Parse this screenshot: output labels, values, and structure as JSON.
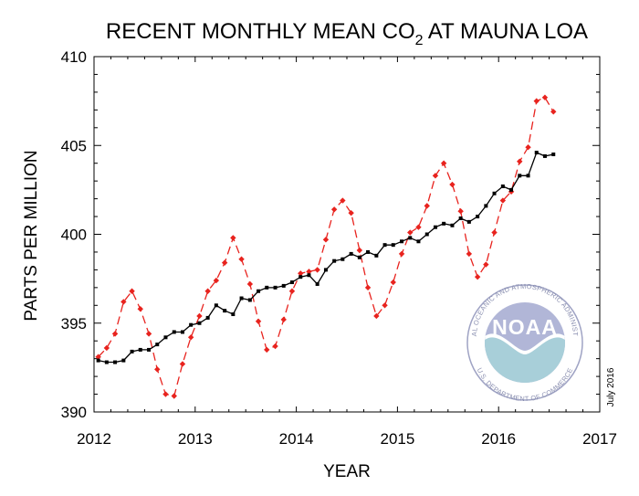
{
  "chart_data": {
    "type": "line",
    "title_parts": [
      "RECENT MONTHLY MEAN CO",
      "2",
      " AT MAUNA LOA"
    ],
    "xlabel": "YEAR",
    "ylabel": "PARTS PER MILLION",
    "xlim": [
      2012,
      2017
    ],
    "ylim": [
      390,
      410
    ],
    "x_ticks": [
      "2012",
      "2013",
      "2014",
      "2015",
      "2016",
      "2017"
    ],
    "y_ticks": [
      "390",
      "395",
      "400",
      "405",
      "410"
    ],
    "grid": false,
    "note": "July 2016",
    "logo": {
      "word": "NOAA",
      "ring_top": "NATIONAL OCEANIC AND ATMOSPHERIC ADMINISTRATION",
      "ring_bottom": "U.S. DEPARTMENT OF COMMERCE"
    },
    "x": [
      2012.042,
      2012.125,
      2012.208,
      2012.292,
      2012.375,
      2012.458,
      2012.542,
      2012.625,
      2012.708,
      2012.792,
      2012.875,
      2012.958,
      2013.042,
      2013.125,
      2013.208,
      2013.292,
      2013.375,
      2013.458,
      2013.542,
      2013.625,
      2013.708,
      2013.792,
      2013.875,
      2013.958,
      2014.042,
      2014.125,
      2014.208,
      2014.292,
      2014.375,
      2014.458,
      2014.542,
      2014.625,
      2014.708,
      2014.792,
      2014.875,
      2014.958,
      2015.042,
      2015.125,
      2015.208,
      2015.292,
      2015.375,
      2015.458,
      2015.542,
      2015.625,
      2015.708,
      2015.792,
      2015.875,
      2015.958,
      2016.042,
      2016.125,
      2016.208,
      2016.292,
      2016.375,
      2016.458,
      2016.542
    ],
    "series": [
      {
        "values": [
          393.1,
          393.6,
          394.4,
          396.2,
          396.8,
          395.8,
          394.4,
          392.4,
          391.0,
          390.9,
          392.7,
          394.2,
          395.4,
          396.8,
          397.4,
          398.4,
          399.8,
          398.6,
          397.2,
          395.1,
          393.5,
          393.7,
          395.2,
          396.8,
          397.8,
          397.9,
          398.0,
          399.7,
          401.4,
          401.9,
          401.2,
          399.1,
          397.0,
          395.4,
          396.0,
          397.3,
          398.9,
          400.1,
          400.4,
          401.6,
          403.3,
          404.0,
          402.8,
          401.3,
          398.9,
          397.6,
          398.3,
          400.1,
          401.9,
          402.4,
          404.1,
          404.9,
          407.5,
          407.7,
          406.9
        ],
        "color": "#e8231e",
        "style": "dashed",
        "marker": "diamond"
      },
      {
        "values": [
          392.9,
          392.8,
          392.8,
          392.9,
          393.4,
          393.5,
          393.5,
          393.8,
          394.2,
          394.5,
          394.5,
          394.9,
          395.0,
          395.3,
          396.0,
          395.7,
          395.5,
          396.4,
          396.3,
          396.8,
          397.0,
          397.0,
          397.1,
          397.3,
          397.6,
          397.7,
          397.2,
          398.0,
          398.5,
          398.6,
          398.9,
          398.7,
          399.0,
          398.8,
          399.4,
          399.4,
          399.6,
          399.8,
          399.6,
          400.0,
          400.4,
          400.6,
          400.5,
          400.9,
          400.7,
          401.0,
          401.6,
          402.3,
          402.7,
          402.5,
          403.3,
          403.3,
          404.6,
          404.4,
          404.5
        ],
        "color": "#000000",
        "style": "solid",
        "marker": "square"
      }
    ]
  }
}
